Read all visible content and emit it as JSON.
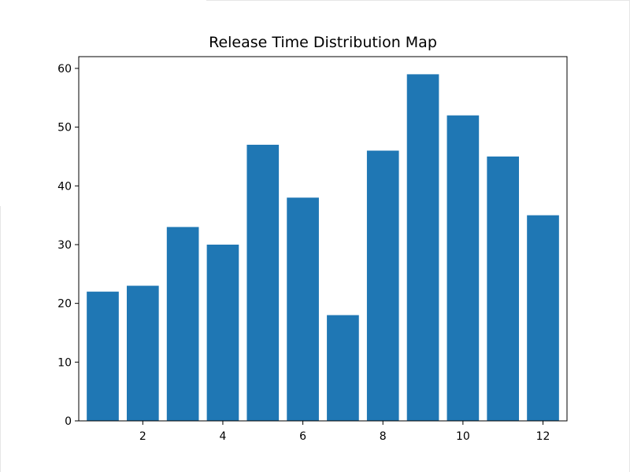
{
  "chart_data": {
    "type": "bar",
    "title": "Release Time Distribution Map",
    "xlabel": "",
    "ylabel": "",
    "categories": [
      1,
      2,
      3,
      4,
      5,
      6,
      7,
      8,
      9,
      10,
      11,
      12
    ],
    "values": [
      22,
      23,
      33,
      30,
      47,
      38,
      18,
      46,
      59,
      52,
      45,
      35
    ],
    "xlim": [
      0.4,
      12.6
    ],
    "ylim": [
      0,
      62
    ],
    "xticks": [
      2,
      4,
      6,
      8,
      10,
      12
    ],
    "yticks": [
      0,
      10,
      20,
      30,
      40,
      50,
      60
    ],
    "bar_color": "#1f77b4",
    "grid": false,
    "legend": "none"
  }
}
